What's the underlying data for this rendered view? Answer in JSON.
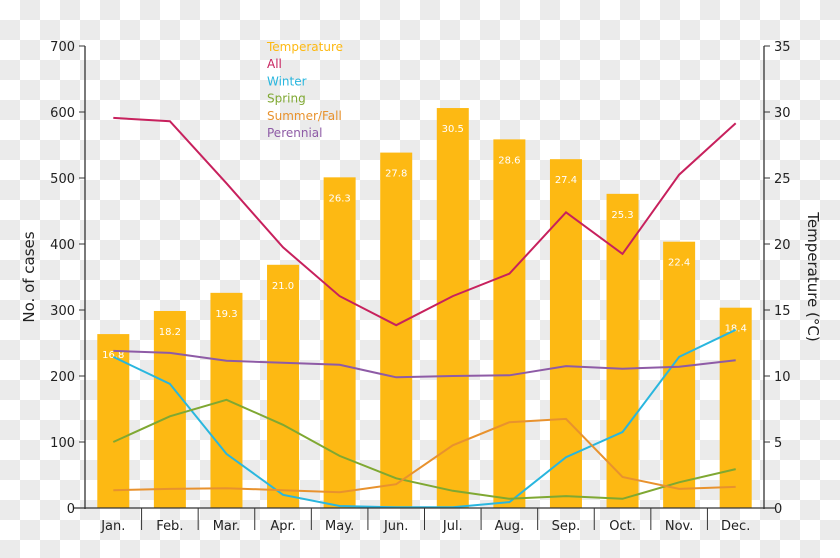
{
  "chart_data": {
    "type": "bar+line",
    "categories": [
      "Jan.",
      "Feb.",
      "Mar.",
      "Apr.",
      "May.",
      "Jun.",
      "Jul.",
      "Aug.",
      "Sep.",
      "Oct.",
      "Nov.",
      "Dec."
    ],
    "ylabel_left": "No. of cases",
    "ylabel_right": "Temperature (°C)",
    "ylim_left": [
      0,
      700
    ],
    "ylim_right": [
      0,
      35
    ],
    "yticks_left": [
      "0",
      "100",
      "200",
      "300",
      "400",
      "500",
      "600",
      "700"
    ],
    "yticks_right": [
      "0",
      "5",
      "10",
      "15",
      "20",
      "25",
      "30",
      "35"
    ],
    "grid": false,
    "legend_placement": "top-center",
    "bars": {
      "name": "Temperature",
      "axis": "right",
      "color": "#FDB913",
      "values": [
        16.8,
        18.2,
        19.3,
        21.0,
        26.3,
        27.8,
        30.5,
        28.6,
        27.4,
        25.3,
        22.4,
        18.4
      ],
      "labels": [
        "16.8",
        "18.2",
        "19.3",
        "21.0",
        "26.3",
        "27.8",
        "30.5",
        "28.6",
        "27.4",
        "25.3",
        "22.4",
        "18.4"
      ]
    },
    "series": [
      {
        "name": "All",
        "axis": "left",
        "color": "#C7215D",
        "values": [
          591,
          586,
          492,
          395,
          321,
          277,
          321,
          355,
          448,
          385,
          505,
          583
        ]
      },
      {
        "name": "Winter",
        "axis": "left",
        "color": "#29B6DE",
        "values": [
          229,
          188,
          82,
          20,
          3,
          1,
          1,
          9,
          77,
          115,
          229,
          270
        ]
      },
      {
        "name": "Spring",
        "axis": "left",
        "color": "#7FA832",
        "values": [
          100,
          139,
          164,
          126,
          79,
          45,
          26,
          14,
          18,
          14,
          39,
          59
        ]
      },
      {
        "name": "Summer/Fall",
        "axis": "left",
        "color": "#E8922E",
        "values": [
          27,
          29,
          30,
          27,
          24,
          36,
          95,
          130,
          135,
          47,
          29,
          32
        ]
      },
      {
        "name": "Perennial",
        "axis": "left",
        "color": "#8E5BA6",
        "values": [
          238,
          235,
          223,
          220,
          217,
          198,
          200,
          201,
          215,
          211,
          214,
          224
        ]
      }
    ]
  }
}
